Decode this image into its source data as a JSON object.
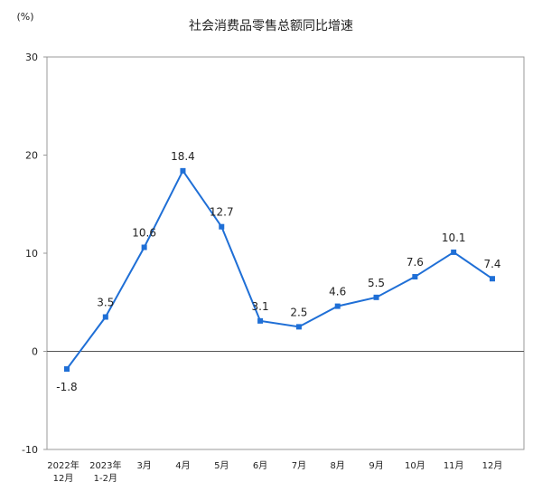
{
  "chart_data": {
    "type": "line",
    "title": "社会消费品零售总额同比增速",
    "ylabel": "(%)",
    "xlabel": "",
    "ylim": [
      -10,
      30
    ],
    "yticks": [
      "30",
      "20",
      "10",
      "0",
      "-10"
    ],
    "ytick_values": [
      30,
      20,
      10,
      0,
      -10
    ],
    "grid": false,
    "legend": "none",
    "categories": [
      [
        "2022年",
        "12月"
      ],
      [
        "2023年",
        "1-2月"
      ],
      [
        "3月"
      ],
      [
        "4月"
      ],
      [
        "5月"
      ],
      [
        "6月"
      ],
      [
        "7月"
      ],
      [
        "8月"
      ],
      [
        "9月"
      ],
      [
        "10月"
      ],
      [
        "11月"
      ],
      [
        "12月"
      ]
    ],
    "series": [
      {
        "name": "社会消费品零售总额同比增速",
        "color": "#1f6fd6",
        "values": [
          -1.8,
          3.5,
          10.6,
          18.4,
          12.7,
          3.1,
          2.5,
          4.6,
          5.5,
          7.6,
          10.1,
          7.4
        ],
        "labels": [
          "-1.8",
          "3.5",
          "10.6",
          "18.4",
          "12.7",
          "3.1",
          "2.5",
          "4.6",
          "5.5",
          "7.6",
          "10.1",
          "7.4"
        ]
      }
    ]
  }
}
